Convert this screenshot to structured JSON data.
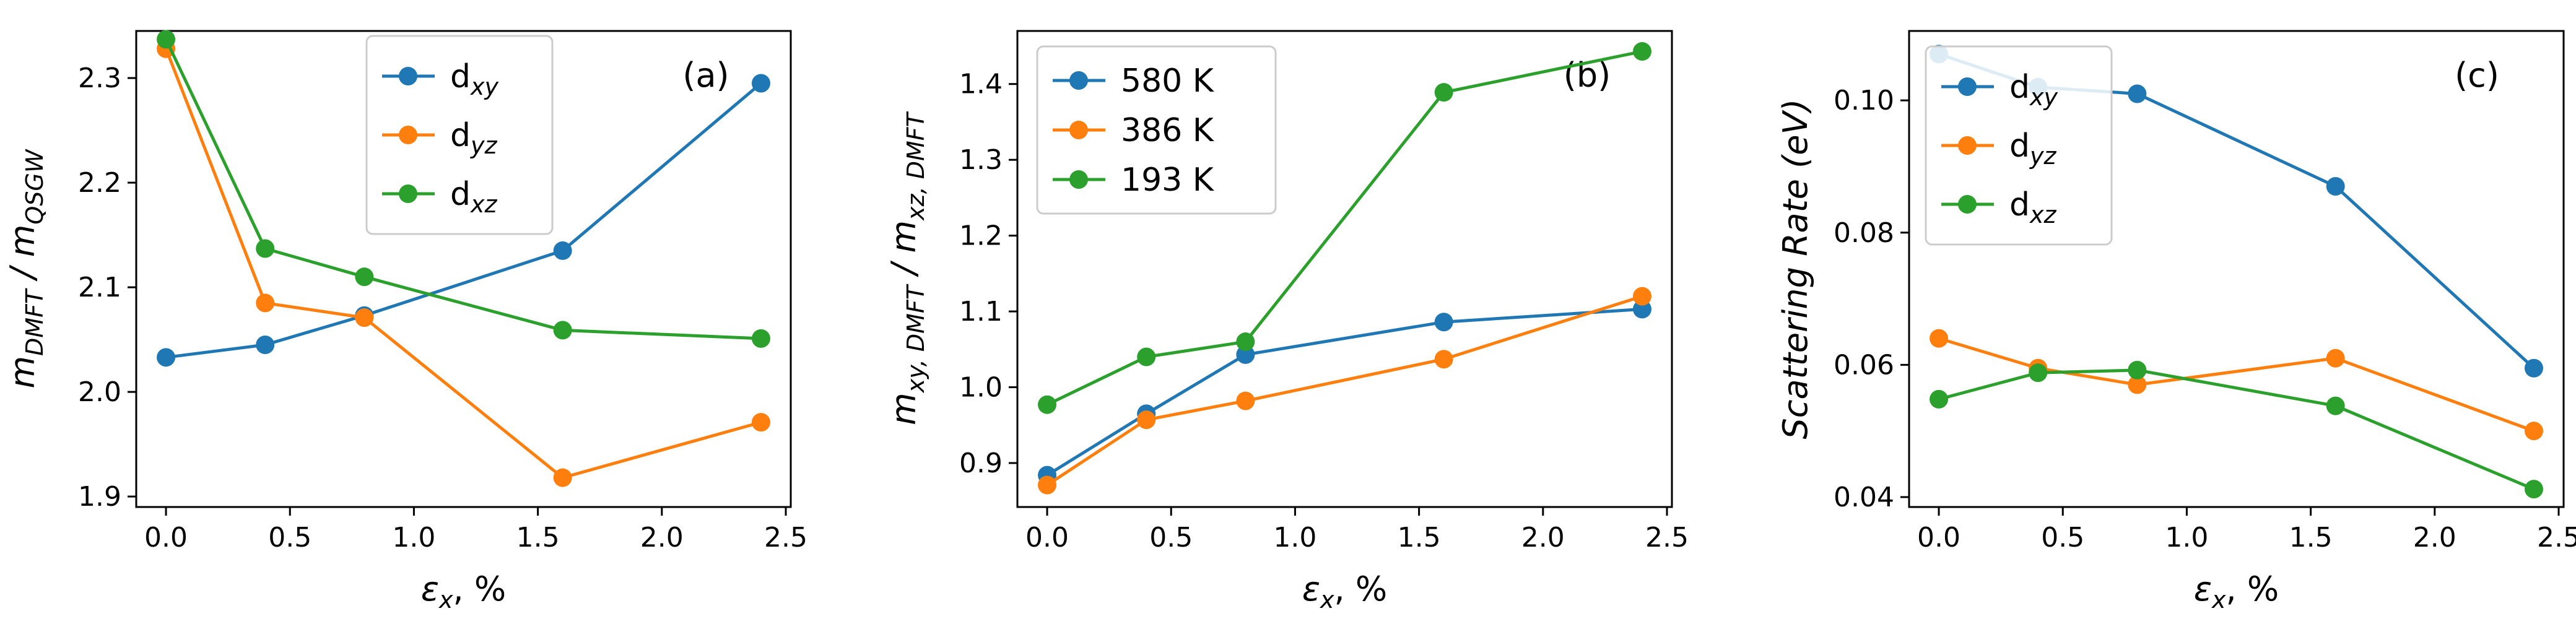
{
  "colors": {
    "blue": "#1f77b4",
    "orange": "#ff7f0e",
    "green": "#2ca02c"
  },
  "chart_data": [
    {
      "type": "line",
      "panel_label": "(a)",
      "x": [
        0.0,
        0.4,
        0.8,
        1.6,
        2.4
      ],
      "xlim": [
        -0.12,
        2.52
      ],
      "xticks": [
        0.0,
        0.5,
        1.0,
        1.5,
        2.0,
        2.5
      ],
      "xtick_labels": [
        "0.0",
        "0.5",
        "1.0",
        "1.5",
        "2.0",
        "2.5"
      ],
      "ylim": [
        1.89,
        2.345
      ],
      "yticks": [
        1.9,
        2.0,
        2.1,
        2.2,
        2.3
      ],
      "ytick_labels": [
        "1.9",
        "2.0",
        "2.1",
        "2.2",
        "2.3"
      ],
      "xlabel": {
        "main": "ε",
        "sub": "x",
        "rest": ", %"
      },
      "ylabel": {
        "main": "m",
        "sub": "DMFT",
        "rest": " / m",
        "sub2": "QSGW"
      },
      "legend_position": "upper-center",
      "series": [
        {
          "name": "d",
          "sub": "xy",
          "color": "#1f77b4",
          "values": [
            2.033,
            2.045,
            2.073,
            2.135,
            2.295
          ]
        },
        {
          "name": "d",
          "sub": "yz",
          "color": "#ff7f0e",
          "values": [
            2.328,
            2.085,
            2.071,
            1.918,
            1.971
          ]
        },
        {
          "name": "d",
          "sub": "xz",
          "color": "#2ca02c",
          "values": [
            2.337,
            2.137,
            2.11,
            2.059,
            2.051
          ]
        }
      ]
    },
    {
      "type": "line",
      "panel_label": "(b)",
      "x": [
        0.0,
        0.4,
        0.8,
        1.6,
        2.4
      ],
      "xlim": [
        -0.12,
        2.52
      ],
      "xticks": [
        0.0,
        0.5,
        1.0,
        1.5,
        2.0,
        2.5
      ],
      "xtick_labels": [
        "0.0",
        "0.5",
        "1.0",
        "1.5",
        "2.0",
        "2.5"
      ],
      "ylim": [
        0.842,
        1.47
      ],
      "yticks": [
        0.9,
        1.0,
        1.1,
        1.2,
        1.3,
        1.4
      ],
      "ytick_labels": [
        "0.9",
        "1.0",
        "1.1",
        "1.2",
        "1.3",
        "1.4"
      ],
      "xlabel": {
        "main": "ε",
        "sub": "x",
        "rest": ", %"
      },
      "ylabel": {
        "main": "m",
        "sub": "xy, DMFT",
        "rest": " / m",
        "sub2": "xz, DMFT"
      },
      "legend_position": "upper-left",
      "series": [
        {
          "name": "580 K",
          "sub": "",
          "color": "#1f77b4",
          "values": [
            0.884,
            0.965,
            1.043,
            1.086,
            1.103
          ]
        },
        {
          "name": "386 K",
          "sub": "",
          "color": "#ff7f0e",
          "values": [
            0.871,
            0.957,
            0.982,
            1.037,
            1.12
          ]
        },
        {
          "name": "193 K",
          "sub": "",
          "color": "#2ca02c",
          "values": [
            0.977,
            1.04,
            1.06,
            1.389,
            1.443
          ]
        }
      ]
    },
    {
      "type": "line",
      "panel_label": "(c)",
      "x": [
        0.0,
        0.4,
        0.8,
        1.6,
        2.4
      ],
      "xlim": [
        -0.12,
        2.52
      ],
      "xticks": [
        0.0,
        0.5,
        1.0,
        1.5,
        2.0,
        2.5
      ],
      "xtick_labels": [
        "0.0",
        "0.5",
        "1.0",
        "1.5",
        "2.0",
        "2.5"
      ],
      "ylim": [
        0.0385,
        0.1105
      ],
      "yticks": [
        0.04,
        0.06,
        0.08,
        0.1
      ],
      "ytick_labels": [
        "0.04",
        "0.06",
        "0.08",
        "0.10"
      ],
      "xlabel": {
        "main": "ε",
        "sub": "x",
        "rest": ", %"
      },
      "ylabel": {
        "main": "Scattering Rate (eV)",
        "sub": "",
        "rest": "",
        "sub2": ""
      },
      "legend_position": "upper-left",
      "series": [
        {
          "name": "d",
          "sub": "xy",
          "color": "#1f77b4",
          "values": [
            0.107,
            0.102,
            0.101,
            0.087,
            0.0595
          ]
        },
        {
          "name": "d",
          "sub": "yz",
          "color": "#ff7f0e",
          "values": [
            0.064,
            0.0595,
            0.057,
            0.061,
            0.05
          ]
        },
        {
          "name": "d",
          "sub": "xz",
          "color": "#2ca02c",
          "values": [
            0.0548,
            0.0588,
            0.0592,
            0.0538,
            0.0412
          ]
        }
      ]
    }
  ]
}
